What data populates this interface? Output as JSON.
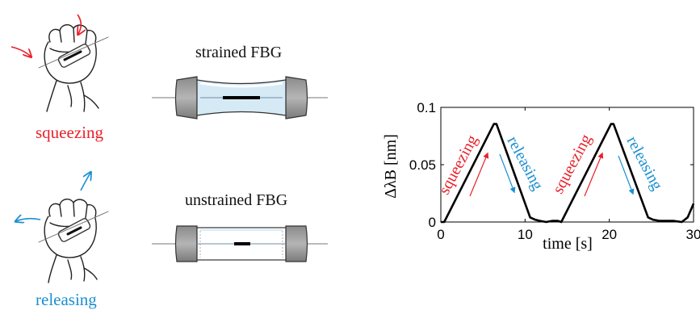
{
  "left": {
    "squeezing_label": "squeezing",
    "releasing_label": "releasing"
  },
  "middle": {
    "strained_title": "strained FBG",
    "unstrained_title": "unstrained FBG"
  },
  "colors": {
    "squeeze": "#e8202a",
    "release": "#1a8fd0",
    "curve": "#000000"
  },
  "chart_data": {
    "type": "line",
    "x": [
      0,
      0.4,
      6.3,
      6.6,
      10.6,
      11.2,
      11.8,
      12.5,
      13.2,
      13.9,
      14.3,
      20.2,
      20.5,
      24.6,
      25.2,
      26,
      26.8,
      27.6,
      28.6,
      29.3,
      30
    ],
    "y": [
      0,
      0,
      0.0855,
      0.0855,
      0.004,
      0.002,
      0.001,
      0,
      0.001,
      0.001,
      0,
      0.0855,
      0.0855,
      0.004,
      0.002,
      0.001,
      0.001,
      0.001,
      0,
      0.004,
      0.016
    ],
    "xlabel": "time [s]",
    "ylabel": "ΔλB [nm]",
    "xlim": [
      0,
      30
    ],
    "ylim": [
      0,
      0.1
    ],
    "xticks": [
      0,
      10,
      20,
      30
    ],
    "yticks": [
      0,
      0.05,
      0.1
    ],
    "xtick_labels": [
      "0",
      "10",
      "20",
      "30"
    ],
    "ytick_labels": [
      "0",
      "0.05",
      "0.1"
    ],
    "annotations": [
      {
        "text": "squeezing",
        "color": "#e8202a"
      },
      {
        "text": "releasing",
        "color": "#1a8fd0"
      },
      {
        "text": "squeezing",
        "color": "#e8202a"
      },
      {
        "text": "releasing",
        "color": "#1a8fd0"
      }
    ],
    "grid": false
  }
}
